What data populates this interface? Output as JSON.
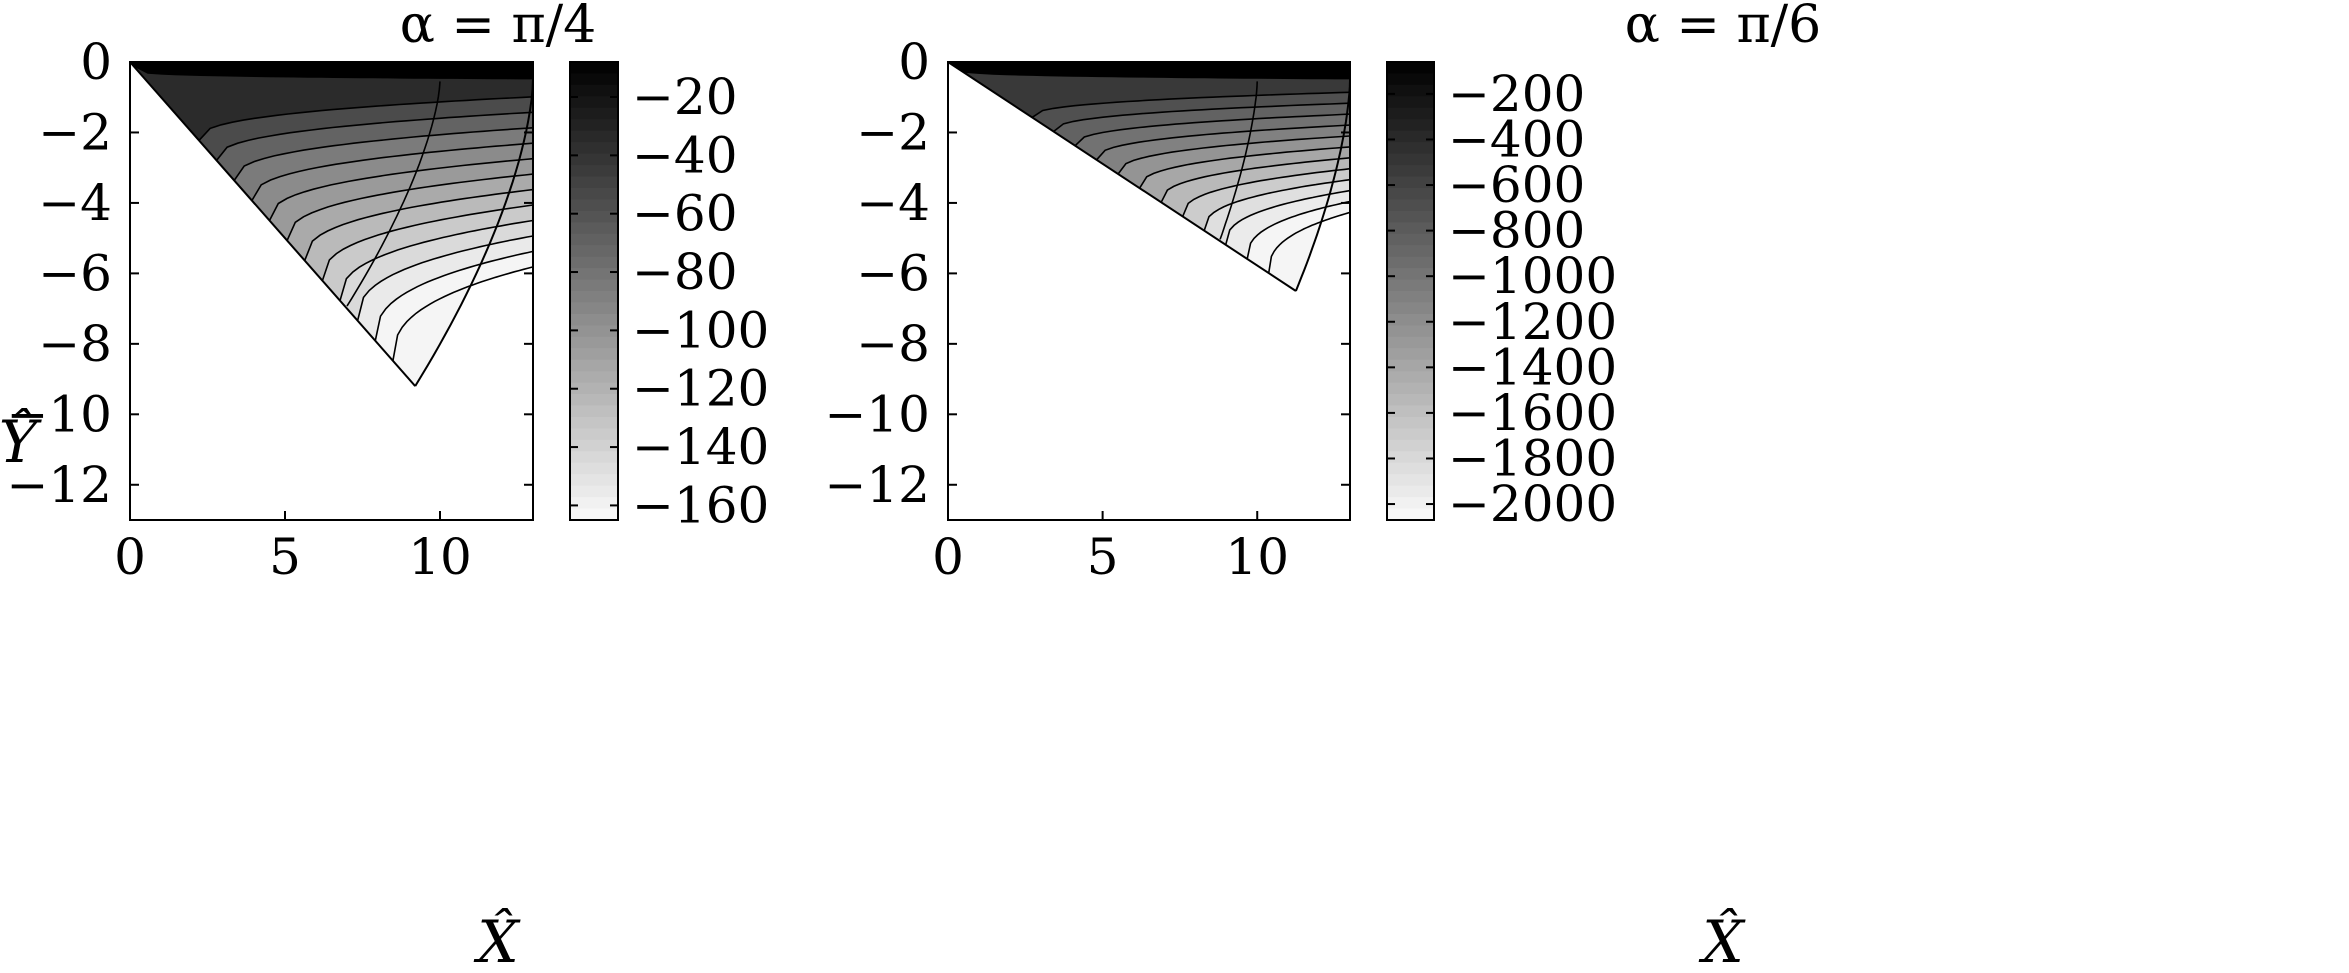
{
  "figure": {
    "y_axis_label": "Ŷ",
    "x_axis_label": "X̂"
  },
  "chart_data": [
    {
      "type": "heatmap",
      "title": "α = π/4",
      "xlabel": "X̂",
      "ylabel": "Ŷ",
      "xlim": [
        0,
        13
      ],
      "ylim": [
        -13,
        0
      ],
      "x_ticks": [
        0,
        5,
        10
      ],
      "x_tick_labels": [
        "0",
        "5",
        "10"
      ],
      "y_ticks": [
        0,
        -2,
        -4,
        -6,
        -8,
        -10,
        -12
      ],
      "y_tick_labels": [
        "0",
        "−2",
        "−4",
        "−6",
        "−8",
        "−10",
        "−12"
      ],
      "wedge_angle": "π/4",
      "wedge_tip": [
        9.2,
        -9.2
      ],
      "colorbar": {
        "range": [
          -165,
          -8
        ],
        "ticks": [
          -20,
          -40,
          -60,
          -80,
          -100,
          -120,
          -140,
          -160
        ],
        "tick_labels": [
          "−20",
          "−40",
          "−60",
          "−80",
          "−100",
          "−120",
          "−140",
          "−160"
        ],
        "colormap": "gray, white at minimum to black at maximum"
      },
      "contours": {
        "count": 12,
        "region_values": [
          -8,
          -35,
          -55,
          -70,
          -85,
          -95,
          -105,
          -115,
          -125,
          -135,
          -145,
          -155,
          -162
        ]
      },
      "cross_curve": {
        "top_x": 10.0,
        "bottom_x": 7.0
      }
    },
    {
      "type": "heatmap",
      "title": "α = π/6",
      "xlabel": "X̂",
      "ylabel": "",
      "xlim": [
        0,
        13
      ],
      "ylim": [
        -13,
        0
      ],
      "x_ticks": [
        0,
        5,
        10
      ],
      "x_tick_labels": [
        "0",
        "5",
        "10"
      ],
      "y_ticks": [
        0,
        -2,
        -4,
        -6,
        -8,
        -10,
        -12
      ],
      "y_tick_labels": [
        "0",
        "−2",
        "−4",
        "−6",
        "−8",
        "−10",
        "−12"
      ],
      "wedge_angle": "π/6",
      "wedge_tip": [
        11.25,
        -6.5
      ],
      "colorbar": {
        "range": [
          -2070,
          -60
        ],
        "ticks": [
          -200,
          -400,
          -600,
          -800,
          -1000,
          -1200,
          -1400,
          -1600,
          -1800,
          -2000
        ],
        "tick_labels": [
          "−200",
          "−400",
          "−600",
          "−800",
          "−1000",
          "−1200",
          "−1400",
          "−1600",
          "−1800",
          "−2000"
        ],
        "colormap": "gray, white at minimum to black at maximum"
      },
      "contours": {
        "count": 12,
        "region_values": [
          -60,
          -520,
          -700,
          -850,
          -980,
          -1100,
          -1250,
          -1400,
          -1550,
          -1700,
          -1850,
          -1950,
          -2030
        ]
      },
      "cross_curve": {
        "top_x": 10.0,
        "bottom_x": 8.8
      }
    }
  ]
}
